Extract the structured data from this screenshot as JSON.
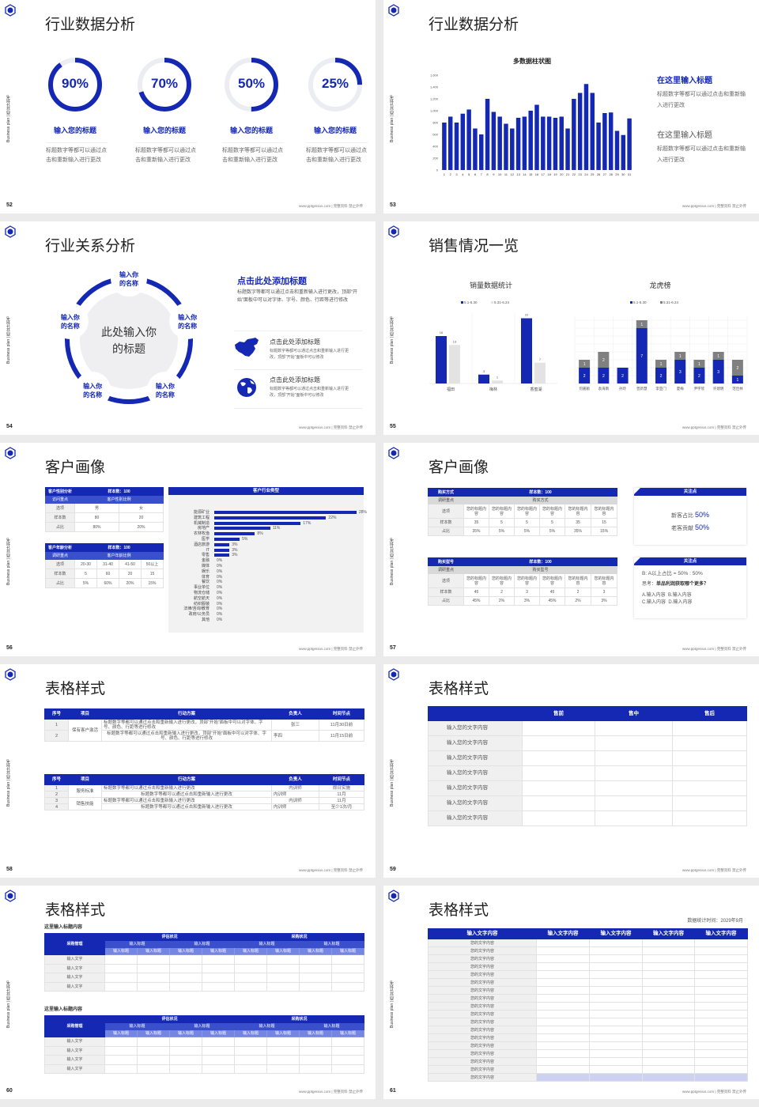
{
  "common": {
    "side_text": "Business plan | 商业计划书",
    "footer": "www.pptgenius.com | 完整资料 禁止外传",
    "brand_color": "#1428b4",
    "secondary_gray": "#808080",
    "light_gray": "#e3e3e3"
  },
  "slides": [
    {
      "page": "52",
      "title": "行业数据分析",
      "rings": [
        {
          "value": 90,
          "label": "90%",
          "title": "输入您的标题",
          "desc": "标题数字等都可以通过点击和重新输入进行更改"
        },
        {
          "value": 70,
          "label": "70%",
          "title": "输入您的标题",
          "desc": "标题数字等都可以通过点击和重新输入进行更改"
        },
        {
          "value": 50,
          "label": "50%",
          "title": "输入您的标题",
          "desc": "标题数字等都可以通过点击和重新输入进行更改"
        },
        {
          "value": 25,
          "label": "25%",
          "title": "输入您的标题",
          "desc": "标题数字等都可以通过点击和重新输入进行更改"
        }
      ]
    },
    {
      "page": "53",
      "title": "行业数据分析",
      "side_items": [
        {
          "title": "在这里输入标题",
          "desc": "标题数字等都可以通过点击和重新输入进行更改"
        },
        {
          "title": "在这里输入标题",
          "desc": "标题数字等都可以通过点击和重新输入进行更改"
        }
      ]
    },
    {
      "page": "54",
      "title": "行业关系分析",
      "center_text": "此处输入你的标题",
      "nodes": [
        "输入你的名称",
        "输入你的名称",
        "输入你的名称",
        "输入你的名称",
        "输入你的名称"
      ],
      "heading": "点击此处添加标题",
      "heading_desc": "标题数字等都可以通过点击和重新输入进行更改，顶部“开始”面板中可以对字体、字号、颜色、行距等进行修改",
      "items": [
        {
          "icon": "china-map-icon",
          "title": "点击此处添加标题",
          "desc": "标题数字等都可以通过点击和重新输入进行更改，顶部“开始”面板中可以修改"
        },
        {
          "icon": "globe-icon",
          "title": "点击此处添加标题",
          "desc": "标题数字等都可以通过点击和重新输入进行更改，顶部“开始”面板中可以修改"
        }
      ]
    },
    {
      "page": "55",
      "title": "销售情况一览"
    },
    {
      "page": "56",
      "title": "客户画像",
      "gender_table": [
        [
          "客户性别分析",
          "样本数：100"
        ],
        [
          "访问重点",
          "客户性别比例"
        ],
        [
          "选项",
          "男",
          "女"
        ],
        [
          "样本数",
          "80",
          "20"
        ],
        [
          "占比",
          "80%",
          "20%"
        ]
      ],
      "age_table": [
        [
          "客户年龄分析",
          "样本数：100"
        ],
        [
          "调研重点",
          "客户年龄比例"
        ],
        [
          "选项",
          "20-30",
          "31-40",
          "41-50",
          "50以上"
        ],
        [
          "样本数",
          "5",
          "60",
          "20",
          "15"
        ],
        [
          "占比",
          "5%",
          "60%",
          "20%",
          "15%"
        ]
      ],
      "industry_panel_title": "客户行业类型"
    },
    {
      "page": "57",
      "title": "客户画像",
      "table1": [
        [
          "购买方式",
          "样本数：100"
        ],
        [
          "调研重点",
          "购买方式"
        ],
        [
          "选项",
          "您的标题内容",
          "您的标题内容",
          "您的标题内容",
          "您的标题内容",
          "您的标题内容",
          "您的标题内容"
        ],
        [
          "样本数",
          "35",
          "5",
          "5",
          "5",
          "35",
          "15"
        ],
        [
          "占比",
          "35%",
          "5%",
          "5%",
          "5%",
          "35%",
          "15%"
        ]
      ],
      "table2": [
        [
          "购买型号",
          "样本数：100"
        ],
        [
          "调研重点",
          "购买型号"
        ],
        [
          "选项",
          "您的标题内容",
          "您的标题内容",
          "您的标题内容",
          "您的标题内容",
          "您的标题内容",
          "您的标题内容"
        ],
        [
          "样本数",
          "45",
          "2",
          "3",
          "45",
          "2",
          "3"
        ],
        [
          "占比",
          "45%",
          "2%",
          "3%",
          "45%",
          "2%",
          "3%"
        ]
      ],
      "box1": {
        "header": "关注点",
        "new_label": "新客占比",
        "new_value": "50%",
        "old_label": "老客贡献",
        "old_value": "50%"
      },
      "box2": {
        "header": "关注点",
        "ratio": "B: A以上占比 = 50% : 50%",
        "think_label": "思考：",
        "think_q": "单品利润获取哪个更多？",
        "opt_a": "A.输入内容",
        "opt_b": "B.输入内容",
        "opt_c": "C.输入内容",
        "opt_d": "D.输入内容"
      }
    },
    {
      "page": "58",
      "title": "表格样式",
      "table1": {
        "header": [
          "序号",
          "项目",
          "行动方案",
          "负责人",
          "时间节点"
        ],
        "rows": [
          [
            "1",
            "保有客户激活",
            "标题数字等都可以通过点击和重新输入进行更改，顶部“开始”面板中可以对字体、字号、颜色、行距等进行修改",
            "张三",
            "11月30日前"
          ],
          [
            "2",
            null,
            "标题数字等都可以通过点击和重新输入进行更改，顶部“开始”面板中可以对字体、字号、颜色、行距等进行修改",
            "李四",
            "11月15日前"
          ]
        ]
      },
      "table2": {
        "header": [
          "序号",
          "项目",
          "行动方案",
          "负责人",
          "时间节点"
        ],
        "rows": [
          [
            "1",
            "服务标准",
            "标题数字等都可以通过点击和重新输入进行更改",
            "内训师",
            "即日实施"
          ],
          [
            "2",
            null,
            "标题数字等都可以通过点击和重新输入进行更改",
            "内训师",
            "11月"
          ],
          [
            "3",
            "销售技能",
            "标题数字等都可以通过点击和重新输入进行更改",
            "内训师",
            "11月"
          ],
          [
            "4",
            null,
            "标题数字等都可以通过点击和重新输入进行更改",
            "内训师",
            "至少1次/月"
          ]
        ]
      }
    },
    {
      "page": "59",
      "title": "表格样式",
      "table": {
        "header": [
          "",
          "售前",
          "售中",
          "售后"
        ],
        "row_labels": [
          "输入您的文字内容",
          "输入您的文字内容",
          "输入您的文字内容",
          "输入您的文字内容",
          "输入您的文字内容",
          "输入您的文字内容",
          "输入您的文字内容"
        ]
      }
    },
    {
      "page": "60",
      "title": "表格样式",
      "blocks": [
        {
          "subtitle": "这里输入标题内容",
          "header": [
            [
              "采购管理",
              "评估状况",
              "采购状况"
            ],
            [
              "输入标题",
              "输入标题",
              "输入标题",
              "输入标题"
            ],
            [
              "输入标题",
              "输入标题",
              "输入标题",
              "输入标题",
              "输入标题",
              "输入标题",
              "输入标题",
              "输入标题"
            ]
          ],
          "row_labels": [
            "输入文字",
            "输入文字",
            "输入文字",
            "输入文字"
          ]
        },
        {
          "subtitle": "这里输入标题内容",
          "header": [
            [
              "采购管理",
              "评估状况",
              "采购状况"
            ],
            [
              "输入标题",
              "输入标题",
              "输入标题",
              "输入标题"
            ],
            [
              "输入标题",
              "输入标题",
              "输入标题",
              "输入标题",
              "输入标题",
              "输入标题",
              "输入标题",
              "输入标题"
            ]
          ],
          "row_labels": [
            "输入文字",
            "输入文字",
            "输入文字",
            "输入文字"
          ]
        }
      ]
    },
    {
      "page": "61",
      "title": "表格样式",
      "stat_time": "数据统计时间：2029年9月",
      "table": {
        "header": [
          "输入文字内容",
          "输入文字内容",
          "输入文字内容",
          "输入文字内容",
          "输入文字内容"
        ],
        "row_labels": [
          "您的文字内容",
          "您的文字内容",
          "您的文字内容",
          "您的文字内容",
          "您的文字内容",
          "您的文字内容",
          "您的文字内容",
          "您的文字内容",
          "您的文字内容",
          "您的文字内容",
          "您的文字内容",
          "您的文字内容",
          "您的文字内容",
          "您的文字内容",
          "您的文字内容",
          "您的文字内容",
          "您的文字内容",
          "您的文字内容"
        ],
        "highlight_last_row": true
      }
    }
  ],
  "chart_data": [
    {
      "type": "bar",
      "title": "多数据柱状图",
      "categories": [
        "1",
        "2",
        "3",
        "4",
        "5",
        "6",
        "7",
        "8",
        "9",
        "10",
        "11",
        "12",
        "13",
        "14",
        "15",
        "16",
        "17",
        "18",
        "19",
        "20",
        "21",
        "22",
        "23",
        "24",
        "25",
        "26",
        "27",
        "28",
        "29",
        "30",
        "31"
      ],
      "values": [
        800,
        900,
        800,
        950,
        1020,
        700,
        600,
        1200,
        980,
        900,
        780,
        700,
        880,
        900,
        1000,
        1100,
        900,
        900,
        880,
        900,
        700,
        1200,
        1300,
        1450,
        1300,
        800,
        960,
        970,
        660,
        590,
        870
      ],
      "ylim": [
        0,
        1600
      ],
      "yticks": [
        "0",
        "200",
        "400",
        "600",
        "800",
        "1,000",
        "1,200",
        "1,400",
        "1,600"
      ],
      "color": "#1428b4",
      "grid": false
    },
    {
      "type": "bar",
      "title": "销量数据统计",
      "categories": [
        "福田",
        "梅林",
        "香蜜湖"
      ],
      "series": [
        {
          "name": "5.1-5.30",
          "values": [
            16,
            3,
            22
          ],
          "color": "#1428b4"
        },
        {
          "name": "5.31-6.24",
          "values": [
            13,
            1,
            7
          ],
          "color": "#e3e3e3"
        }
      ],
      "ylim": [
        0,
        24
      ],
      "legend": "top",
      "data_labels": true
    },
    {
      "type": "stacked-bar",
      "title": "龙虎榜",
      "categories": [
        "何嘉颖",
        "袁海南",
        "孙玲",
        "曾新慧",
        "李亚门",
        "夏梅",
        "尹宇欣",
        "许建明",
        "范佳林"
      ],
      "series": [
        {
          "name": "5.1-5.30",
          "values": [
            2,
            2,
            2,
            7,
            2,
            3,
            2,
            3,
            1
          ],
          "color": "#1428b4"
        },
        {
          "name": "5.31-6.24",
          "values": [
            1,
            2,
            0,
            1,
            1,
            1,
            1,
            1,
            2
          ],
          "color": "#808080"
        }
      ],
      "ylim": [
        0,
        8.5
      ],
      "legend": "top",
      "grid": true,
      "data_labels": true
    },
    {
      "type": "bar",
      "orientation": "horizontal",
      "title": "客户行业类型",
      "categories": [
        "能源矿业",
        "建筑工程",
        "机械制造",
        "房地产",
        "农林牧渔",
        "医学",
        "酒店旅游",
        "IT",
        "零售",
        "金融",
        "媒体",
        "娱乐",
        "体育",
        "餐饮",
        "事业单位",
        "物流仓储",
        "航空航天",
        "纺织服装",
        "法律/咨询/教育",
        "政府/公务员",
        "其他"
      ],
      "values": [
        28,
        22,
        17,
        11,
        8,
        5,
        3,
        3,
        3,
        0,
        0,
        0,
        0,
        0,
        0,
        0,
        0,
        0,
        0,
        0,
        0
      ],
      "value_labels": [
        "28%",
        "22%",
        "17%",
        "11%",
        "8%",
        "5%",
        "3%",
        "3%",
        "3%",
        "0%",
        "0%",
        "0%",
        "0%",
        "0%",
        "0%",
        "0%",
        "0%",
        "0%",
        "0%",
        "0%",
        "0%"
      ],
      "xlim": [
        0,
        28
      ],
      "color": "#1428b4"
    }
  ]
}
